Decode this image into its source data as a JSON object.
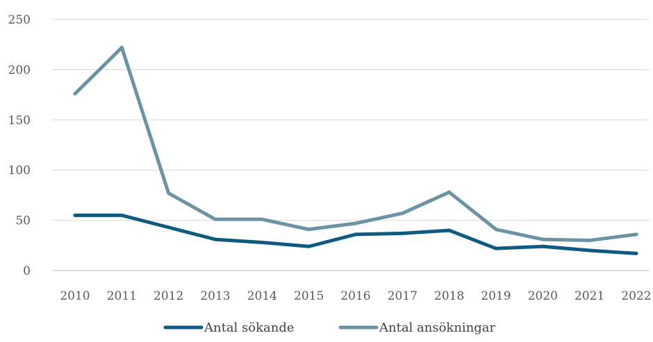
{
  "chart_data": {
    "type": "line",
    "title": "",
    "xlabel": "",
    "ylabel": "",
    "categories": [
      "2010",
      "2011",
      "2012",
      "2013",
      "2014",
      "2015",
      "2016",
      "2017",
      "2018",
      "2019",
      "2020",
      "2021",
      "2022"
    ],
    "ylim": [
      0,
      250
    ],
    "yticks": [
      0,
      50,
      100,
      150,
      200,
      250
    ],
    "grid": true,
    "legend_position": "bottom",
    "series": [
      {
        "name": "Antal sökande",
        "color": "#0e5a80",
        "values": [
          55,
          55,
          43,
          31,
          28,
          24,
          36,
          37,
          40,
          22,
          24,
          20,
          17
        ]
      },
      {
        "name": "Antal ansökningar",
        "color": "#6b93a3",
        "values": [
          176,
          222,
          77,
          51,
          51,
          41,
          47,
          57,
          78,
          41,
          31,
          30,
          36
        ]
      }
    ]
  }
}
